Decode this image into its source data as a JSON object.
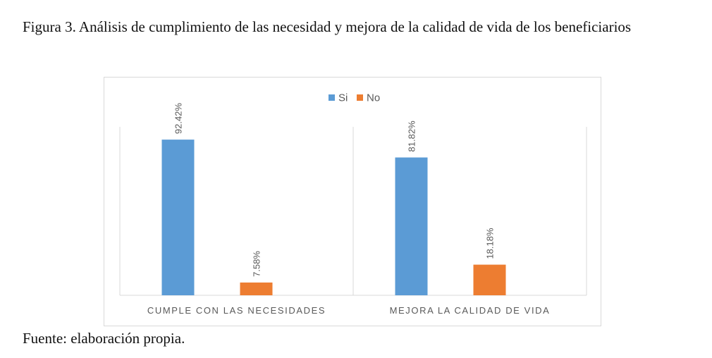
{
  "caption": "Figura 3. Análisis de cumplimiento de las necesidad y mejora de la calidad de vida de los beneficiarios",
  "source": "Fuente: elaboración propia.",
  "colors": {
    "si": "#5B9BD5",
    "no": "#ED7D31",
    "axis": "#d9d9d9",
    "label": "#595959"
  },
  "chart_data": {
    "type": "bar",
    "categories": [
      "CUMPLE CON LAS NECESIDADES",
      "MEJORA LA CALIDAD DE VIDA"
    ],
    "series": [
      {
        "name": "Si",
        "values": [
          92.42,
          81.82
        ],
        "labels": [
          "92.42%",
          "81.82%"
        ]
      },
      {
        "name": "No",
        "values": [
          7.58,
          18.18
        ],
        "labels": [
          "7.58%",
          "18.18%"
        ]
      }
    ],
    "ylim": [
      0,
      100
    ],
    "legend": "top-center",
    "grid": false
  }
}
